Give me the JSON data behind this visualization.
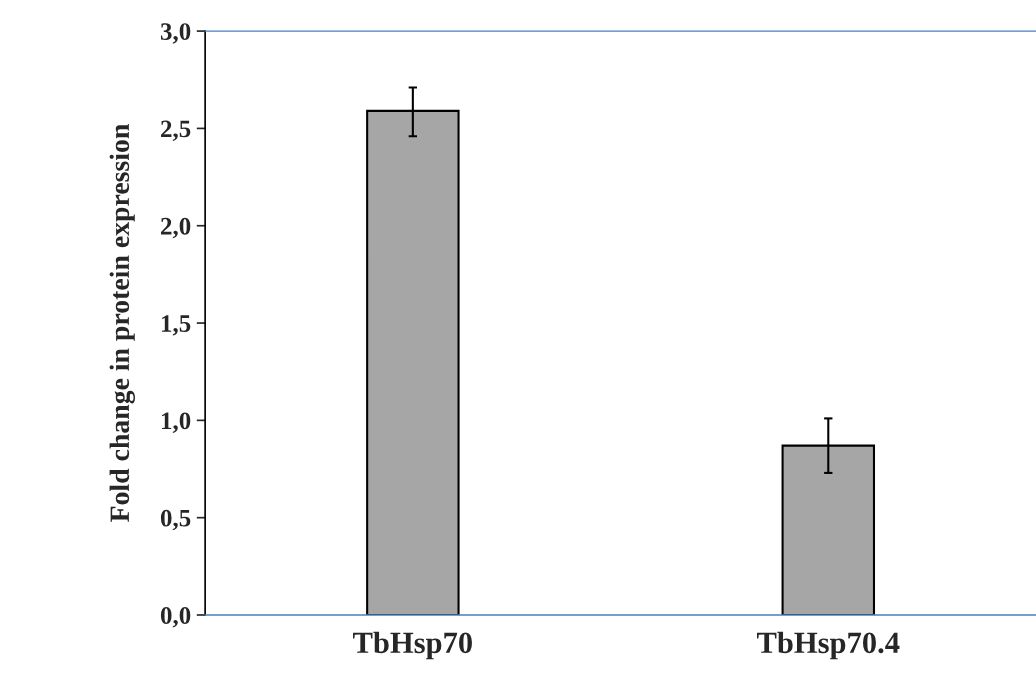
{
  "chart_data": {
    "type": "bar",
    "ylabel": "Fold change in protein expression",
    "categories": [
      "TbHsp70",
      "TbHsp70.4"
    ],
    "values": [
      2.59,
      0.87
    ],
    "errors": [
      [
        2.46,
        2.71
      ],
      [
        0.73,
        1.01
      ]
    ],
    "color": "#a6a6a6",
    "ylim": [
      0,
      3
    ],
    "yticks": [
      {
        "value": 0,
        "label": "0,0"
      },
      {
        "value": 0.5,
        "label": "0,5"
      },
      {
        "value": 1,
        "label": "1,0"
      },
      {
        "value": 1.5,
        "label": "1,5"
      },
      {
        "value": 2,
        "label": "2,0"
      },
      {
        "value": 2.5,
        "label": "2,5"
      },
      {
        "value": 3,
        "label": "3,0"
      }
    ],
    "grid": false,
    "legend": false
  }
}
